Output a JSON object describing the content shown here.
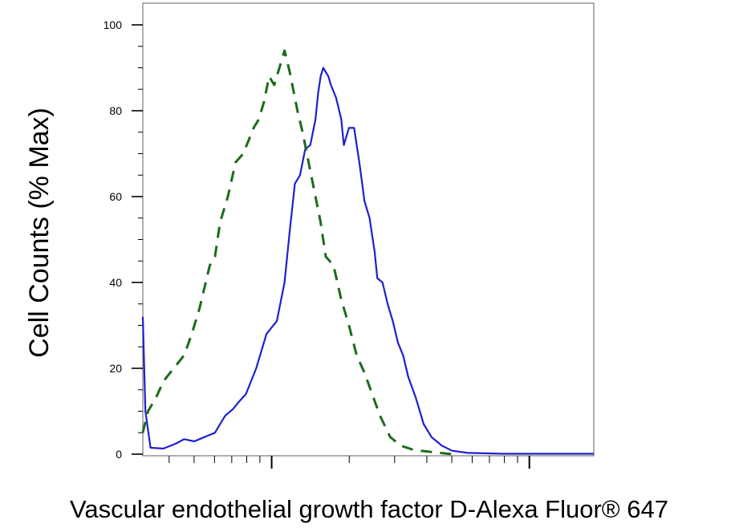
{
  "chart_data": {
    "type": "line",
    "title": "",
    "xlabel": "Vascular endothelial growth factor D-Alexa Fluor® 647",
    "ylabel": "Cell Counts (% Max)",
    "xscale": "log",
    "xlim": [
      0,
      1.75
    ],
    "ylim": [
      0,
      100
    ],
    "yticks": [
      0,
      20,
      40,
      60,
      80,
      100
    ],
    "ytick_labels": [
      "0",
      "20",
      "40",
      "60",
      "80",
      "100"
    ],
    "x_major_ticks": [
      0.5,
      1.5
    ],
    "x_tick_labels_shown": false,
    "grid": false,
    "legend": "none",
    "series": [
      {
        "color": "#1f1fd0",
        "linestyle": "solid",
        "points": [
          [
            0.0,
            32
          ],
          [
            0.01,
            10
          ],
          [
            0.03,
            1.5
          ],
          [
            0.08,
            1.3
          ],
          [
            0.13,
            2.5
          ],
          [
            0.16,
            3.5
          ],
          [
            0.2,
            3
          ],
          [
            0.26,
            4.5
          ],
          [
            0.28,
            5
          ],
          [
            0.3,
            7
          ],
          [
            0.32,
            9
          ],
          [
            0.35,
            10.5
          ],
          [
            0.37,
            12
          ],
          [
            0.4,
            14
          ],
          [
            0.44,
            20
          ],
          [
            0.48,
            28
          ],
          [
            0.52,
            31
          ],
          [
            0.53,
            34
          ],
          [
            0.55,
            40
          ],
          [
            0.57,
            52
          ],
          [
            0.59,
            63
          ],
          [
            0.61,
            65
          ],
          [
            0.62,
            68
          ],
          [
            0.63,
            71
          ],
          [
            0.65,
            72
          ],
          [
            0.67,
            78
          ],
          [
            0.68,
            84
          ],
          [
            0.69,
            88
          ],
          [
            0.7,
            90
          ],
          [
            0.72,
            88
          ],
          [
            0.73,
            86
          ],
          [
            0.75,
            83
          ],
          [
            0.77,
            78
          ],
          [
            0.78,
            72
          ],
          [
            0.8,
            76
          ],
          [
            0.82,
            76
          ],
          [
            0.84,
            68
          ],
          [
            0.86,
            59
          ],
          [
            0.88,
            55
          ],
          [
            0.9,
            47
          ],
          [
            0.91,
            41
          ],
          [
            0.93,
            40
          ],
          [
            0.95,
            35
          ],
          [
            0.97,
            31
          ],
          [
            0.99,
            26
          ],
          [
            1.01,
            23
          ],
          [
            1.03,
            18
          ],
          [
            1.06,
            13
          ],
          [
            1.09,
            7
          ],
          [
            1.12,
            4
          ],
          [
            1.16,
            2
          ],
          [
            1.2,
            0.8
          ],
          [
            1.26,
            0.3
          ],
          [
            1.4,
            0.1
          ],
          [
            1.75,
            0.1
          ]
        ]
      },
      {
        "color": "#1c6b1c",
        "linestyle": "dashed",
        "points": [
          [
            0.0,
            5
          ],
          [
            0.02,
            10
          ],
          [
            0.05,
            13
          ],
          [
            0.08,
            17
          ],
          [
            0.12,
            20
          ],
          [
            0.16,
            23
          ],
          [
            0.19,
            28
          ],
          [
            0.22,
            34
          ],
          [
            0.26,
            44
          ],
          [
            0.28,
            46
          ],
          [
            0.3,
            54
          ],
          [
            0.33,
            60
          ],
          [
            0.36,
            68
          ],
          [
            0.39,
            70
          ],
          [
            0.43,
            76
          ],
          [
            0.45,
            78
          ],
          [
            0.47,
            82
          ],
          [
            0.49,
            88
          ],
          [
            0.51,
            86
          ],
          [
            0.53,
            90
          ],
          [
            0.55,
            94
          ],
          [
            0.57,
            89
          ],
          [
            0.6,
            80
          ],
          [
            0.62,
            75
          ],
          [
            0.65,
            66
          ],
          [
            0.69,
            54
          ],
          [
            0.71,
            46
          ],
          [
            0.74,
            44
          ],
          [
            0.77,
            36
          ],
          [
            0.8,
            30
          ],
          [
            0.83,
            23
          ],
          [
            0.86,
            19
          ],
          [
            0.89,
            14
          ],
          [
            0.92,
            9
          ],
          [
            0.96,
            4
          ],
          [
            1.0,
            2
          ],
          [
            1.05,
            1
          ],
          [
            1.12,
            0.5
          ],
          [
            1.2,
            0
          ]
        ]
      }
    ]
  }
}
